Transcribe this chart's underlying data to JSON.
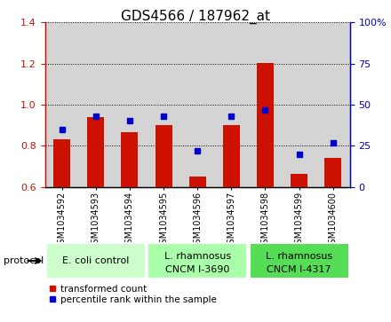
{
  "title": "GDS4566 / 187962_at",
  "samples": [
    "GSM1034592",
    "GSM1034593",
    "GSM1034594",
    "GSM1034595",
    "GSM1034596",
    "GSM1034597",
    "GSM1034598",
    "GSM1034599",
    "GSM1034600"
  ],
  "transformed_count": [
    0.831,
    0.94,
    0.868,
    0.9,
    0.652,
    0.9,
    1.202,
    0.662,
    0.74
  ],
  "percentile_rank": [
    35,
    43,
    40,
    43,
    22,
    43,
    47,
    20,
    27
  ],
  "ylim_left": [
    0.6,
    1.4
  ],
  "ylim_right": [
    0,
    100
  ],
  "yticks_left": [
    0.6,
    0.8,
    1.0,
    1.2,
    1.4
  ],
  "yticks_right": [
    0,
    25,
    50,
    75,
    100
  ],
  "bar_color": "#cc1100",
  "dot_color": "#0000cc",
  "bar_bottom": 0.6,
  "groups": [
    {
      "label": "E. coli control",
      "start": 0,
      "end": 3,
      "color": "#ccffcc"
    },
    {
      "label": "L. rhamnosus\nCNCM I-3690",
      "start": 3,
      "end": 6,
      "color": "#aaffaa"
    },
    {
      "label": "L. rhamnosus\nCNCM I-4317",
      "start": 6,
      "end": 9,
      "color": "#55dd55"
    }
  ],
  "legend_bar_label": "transformed count",
  "legend_dot_label": "percentile rank within the sample",
  "protocol_label": "protocol",
  "left_axis_color": "#cc1100",
  "right_axis_color": "#0000cc",
  "title_fontsize": 11,
  "tick_fontsize": 8,
  "group_fontsize": 8,
  "xtick_fontsize": 7,
  "bar_width": 0.5,
  "col_bg_color": "#d4d4d4",
  "grid_color": "#000000"
}
